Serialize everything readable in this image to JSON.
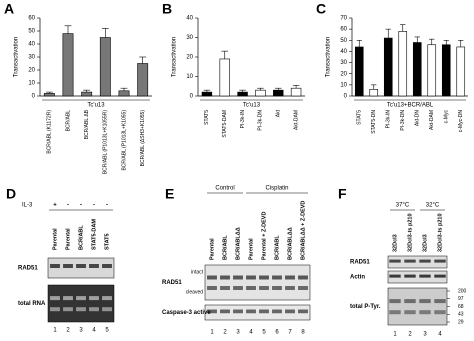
{
  "chart_data": [
    {
      "panel": "A",
      "type": "bar",
      "ylabel": "Transactivation",
      "xlabel": "Tc'u13",
      "categories": [
        "BCR/ABL (K1172R)",
        "BCR/ABL",
        "BCR/ABL ΔB",
        "BCR/ABL (P1013L+K1055R)",
        "BCR/ABL (P1013L+K1055)",
        "BCR/ABL (ΔSH3+K1055)"
      ],
      "values": [
        2,
        48,
        3,
        45,
        4,
        25
      ],
      "errors": [
        1,
        6,
        1.5,
        7,
        2,
        5
      ],
      "colors": [
        "#777777",
        "#777777",
        "#777777",
        "#777777",
        "#777777",
        "#777777"
      ],
      "ylim": [
        0,
        60
      ],
      "yticks": [
        0,
        10,
        20,
        30,
        40,
        50,
        60
      ]
    },
    {
      "panel": "B",
      "type": "bar",
      "ylabel": "Transactivation",
      "xlabel": "Tc'u13",
      "categories": [
        "STAT5",
        "STAT5-DAM",
        "PI-3k-IN",
        "PI-3k-DN",
        "Akt",
        "Akt-DAM"
      ],
      "values": [
        2,
        19,
        2,
        3,
        3,
        4
      ],
      "errors": [
        1,
        4,
        1,
        1,
        1,
        1.5
      ],
      "colors": [
        "#000000",
        "#ffffff",
        "#000000",
        "#ffffff",
        "#000000",
        "#ffffff"
      ],
      "ylim": [
        0,
        40
      ],
      "yticks": [
        0,
        10,
        20,
        30,
        40
      ]
    },
    {
      "panel": "C",
      "type": "bar",
      "ylabel": "Transactivation",
      "xlabel": "Tc'u13+BCR/ABL",
      "categories": [
        "STAT5",
        "STAT5-DN",
        "PI-3k-IN",
        "PI-3k-DN",
        "Akt-DN",
        "Akt-DAM",
        "c-Myc",
        "c-Myc-DN"
      ],
      "values": [
        44,
        6,
        52,
        58,
        48,
        46,
        46,
        44
      ],
      "errors": [
        6,
        4,
        8,
        6,
        5,
        5,
        4,
        6
      ],
      "colors": [
        "#000000",
        "#ffffff",
        "#000000",
        "#ffffff",
        "#000000",
        "#ffffff",
        "#000000",
        "#ffffff"
      ],
      "ylim": [
        0,
        70
      ],
      "yticks": [
        0,
        10,
        20,
        30,
        40,
        50,
        60,
        70
      ]
    }
  ],
  "blots": [
    {
      "panel": "D",
      "treatment_label": "IL-3",
      "treatments": [
        "+",
        "-",
        "-",
        "-",
        "-"
      ],
      "lanes": [
        "Parental",
        "Parental",
        "BCR/ABL",
        "STAT5-DAM",
        "STAT5"
      ],
      "rows": [
        {
          "label": "RAD51"
        },
        {
          "label": "total RNA"
        }
      ],
      "lane_numbers": [
        1,
        2,
        3,
        4,
        5
      ]
    },
    {
      "panel": "E",
      "groups": [
        "Control",
        "Cisplatin"
      ],
      "lanes": [
        "Parental",
        "BCR/ABL",
        "BCR/ABLΔΔ",
        "Parental",
        "Parental + Z-DEVD",
        "BCR/ABL",
        "BCR/ABLΔΔ",
        "BCR/ABLΔΔ + Z-DEVD"
      ],
      "rows": [
        {
          "label": "RAD51",
          "sublabels": [
            "intact",
            "cleaved"
          ]
        },
        {
          "label": "Caspase-3 active"
        }
      ],
      "lane_numbers": [
        1,
        2,
        3,
        4,
        5,
        6,
        7,
        8
      ]
    },
    {
      "panel": "F",
      "groups": [
        "37°C",
        "32°C"
      ],
      "lanes": [
        "32Dcl3",
        "32Dcl3-ts p210",
        "32Dcl3",
        "32Dcl3-ts p210"
      ],
      "rows": [
        {
          "label": "RAD51"
        },
        {
          "label": "Actin"
        },
        {
          "label": "total P-Tyr."
        }
      ],
      "markers": [
        200,
        97,
        68,
        43,
        29
      ],
      "lane_numbers": [
        1,
        2,
        3,
        4
      ]
    }
  ]
}
